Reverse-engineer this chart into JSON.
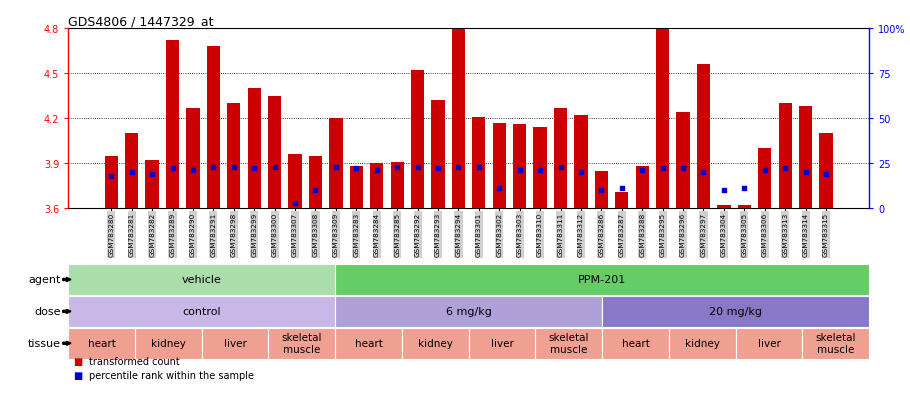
{
  "title": "GDS4806 / 1447329_at",
  "samples": [
    "GSM783280",
    "GSM783281",
    "GSM783282",
    "GSM783289",
    "GSM783290",
    "GSM783291",
    "GSM783298",
    "GSM783299",
    "GSM783300",
    "GSM783307",
    "GSM783308",
    "GSM783309",
    "GSM783283",
    "GSM783284",
    "GSM783285",
    "GSM783292",
    "GSM783293",
    "GSM783294",
    "GSM783301",
    "GSM783302",
    "GSM783303",
    "GSM783310",
    "GSM783311",
    "GSM783312",
    "GSM783286",
    "GSM783287",
    "GSM783288",
    "GSM783295",
    "GSM783296",
    "GSM783297",
    "GSM783304",
    "GSM783305",
    "GSM783306",
    "GSM783313",
    "GSM783314",
    "GSM783315"
  ],
  "transformed_count": [
    3.95,
    4.1,
    3.92,
    4.72,
    4.27,
    4.68,
    4.3,
    4.4,
    4.35,
    3.96,
    3.95,
    4.2,
    3.88,
    3.9,
    3.91,
    4.52,
    4.32,
    4.79,
    4.21,
    4.17,
    4.16,
    4.14,
    4.27,
    4.22,
    3.85,
    3.71,
    3.88,
    4.79,
    4.24,
    4.56,
    3.62,
    3.62,
    4.0,
    4.3,
    4.28,
    4.1
  ],
  "percentile_rank": [
    18,
    20,
    19,
    22,
    21,
    23,
    23,
    22,
    23,
    3,
    10,
    23,
    22,
    21,
    23,
    23,
    22,
    23,
    23,
    11,
    21,
    21,
    23,
    20,
    10,
    11,
    21,
    22,
    22,
    20,
    10,
    11,
    21,
    22,
    20,
    19
  ],
  "ylim_left": [
    3.6,
    4.8
  ],
  "ylim_right": [
    0,
    100
  ],
  "yticks_left": [
    3.6,
    3.9,
    4.2,
    4.5,
    4.8
  ],
  "yticks_right": [
    0,
    25,
    50,
    75,
    100
  ],
  "bar_color": "#cc0000",
  "dot_color": "#0000cc",
  "xtick_bg": "#d0d0d0",
  "agent_groups": [
    {
      "label": "vehicle",
      "start": 0,
      "end": 12,
      "color": "#aaddaa"
    },
    {
      "label": "PPM-201",
      "start": 12,
      "end": 36,
      "color": "#66cc66"
    }
  ],
  "dose_groups": [
    {
      "label": "control",
      "start": 0,
      "end": 12,
      "color": "#c8b8e8"
    },
    {
      "label": "6 mg/kg",
      "start": 12,
      "end": 24,
      "color": "#b0a0d8"
    },
    {
      "label": "20 mg/kg",
      "start": 24,
      "end": 36,
      "color": "#8878c8"
    }
  ],
  "tissue_groups": [
    {
      "label": "heart",
      "start": 0,
      "end": 3
    },
    {
      "label": "kidney",
      "start": 3,
      "end": 6
    },
    {
      "label": "liver",
      "start": 6,
      "end": 9
    },
    {
      "label": "skeletal\nmuscle",
      "start": 9,
      "end": 12
    },
    {
      "label": "heart",
      "start": 12,
      "end": 15
    },
    {
      "label": "kidney",
      "start": 15,
      "end": 18
    },
    {
      "label": "liver",
      "start": 18,
      "end": 21
    },
    {
      "label": "skeletal\nmuscle",
      "start": 21,
      "end": 24
    },
    {
      "label": "heart",
      "start": 24,
      "end": 27
    },
    {
      "label": "kidney",
      "start": 27,
      "end": 30
    },
    {
      "label": "liver",
      "start": 30,
      "end": 33
    },
    {
      "label": "skeletal\nmuscle",
      "start": 33,
      "end": 36
    }
  ],
  "tissue_color": "#f0a090",
  "legend": [
    {
      "label": "transformed count",
      "color": "#cc0000"
    },
    {
      "label": "percentile rank within the sample",
      "color": "#0000cc"
    }
  ]
}
